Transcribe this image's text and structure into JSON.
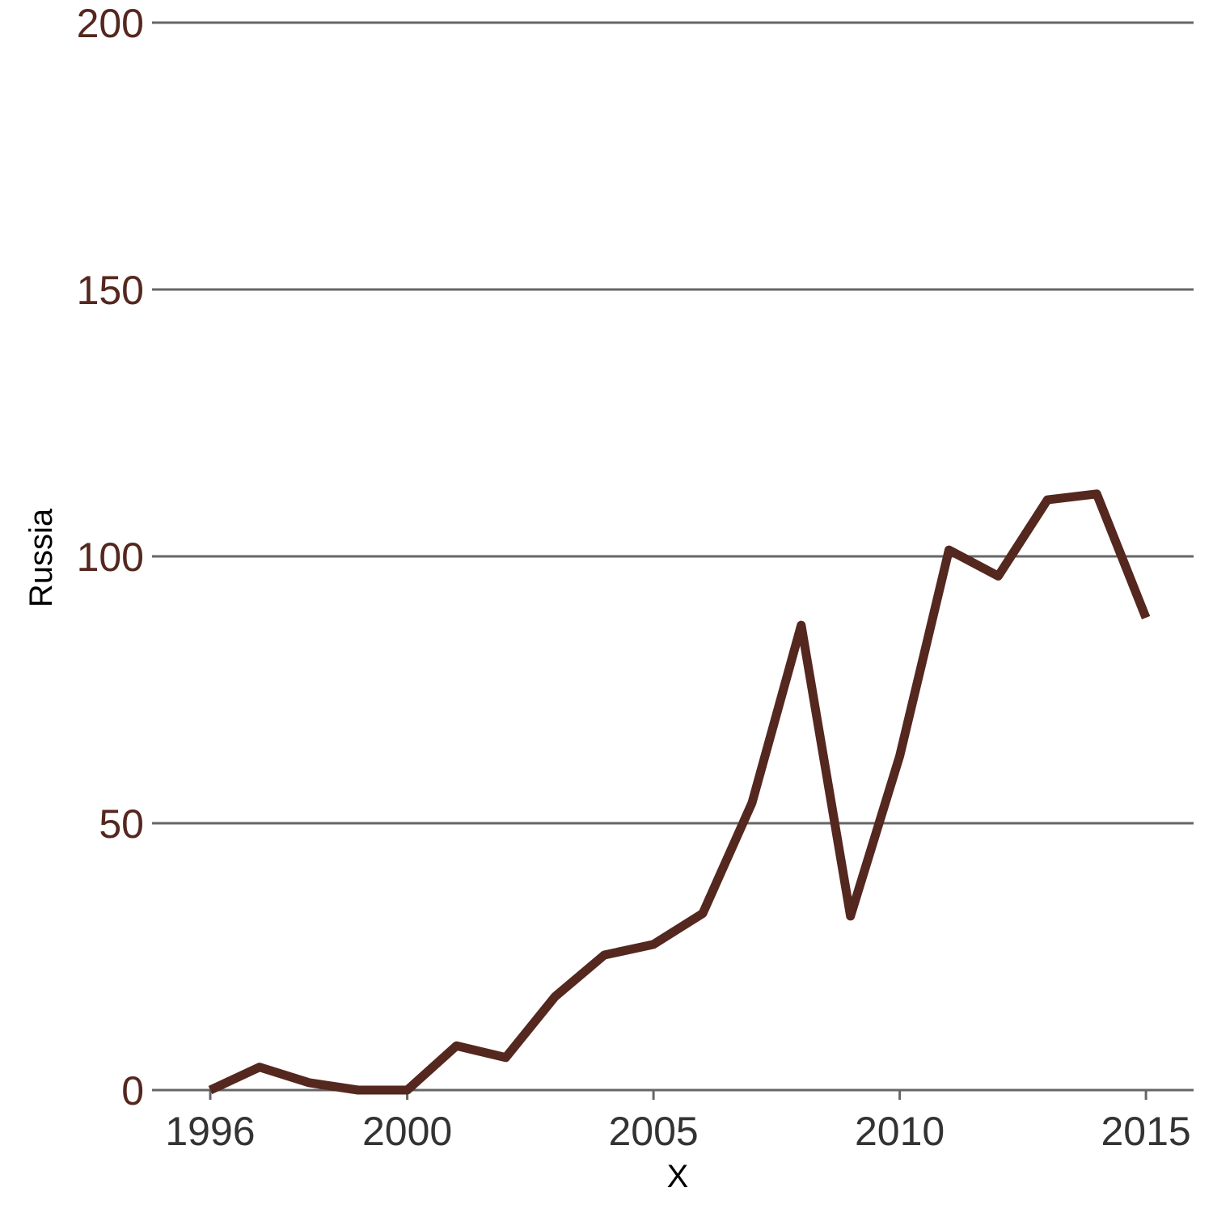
{
  "chart_data": {
    "type": "line",
    "title": "",
    "xlabel": "X",
    "ylabel": "Russia",
    "x": [
      1996,
      1997,
      1998,
      1999,
      2000,
      2001,
      2002,
      2003,
      2004,
      2005,
      2006,
      2007,
      2008,
      2009,
      2010,
      2011,
      2012,
      2013,
      2014,
      2015
    ],
    "series": [
      {
        "name": "",
        "values": [
          0,
          4.3,
          1.4,
          0,
          0,
          8.3,
          6.1,
          17.5,
          25.3,
          27.3,
          33.1,
          53.8,
          87.1,
          32.6,
          62.6,
          101.2,
          96.3,
          110.6,
          111.7,
          88.5
        ],
        "color": "#54271f"
      }
    ],
    "xlim": [
      1995,
      2016
    ],
    "ylim": [
      0,
      200
    ],
    "x_ticks": [
      "1996",
      "2000",
      "2005",
      "2010",
      "2015"
    ],
    "y_ticks": [
      "0",
      "50",
      "100",
      "150",
      "200"
    ],
    "grid": "horizontal",
    "legend": "none",
    "colors": {
      "line": "#54271f",
      "y_tick_text": "#54271f",
      "x_tick_text": "#333333",
      "grid": "#666666"
    }
  }
}
